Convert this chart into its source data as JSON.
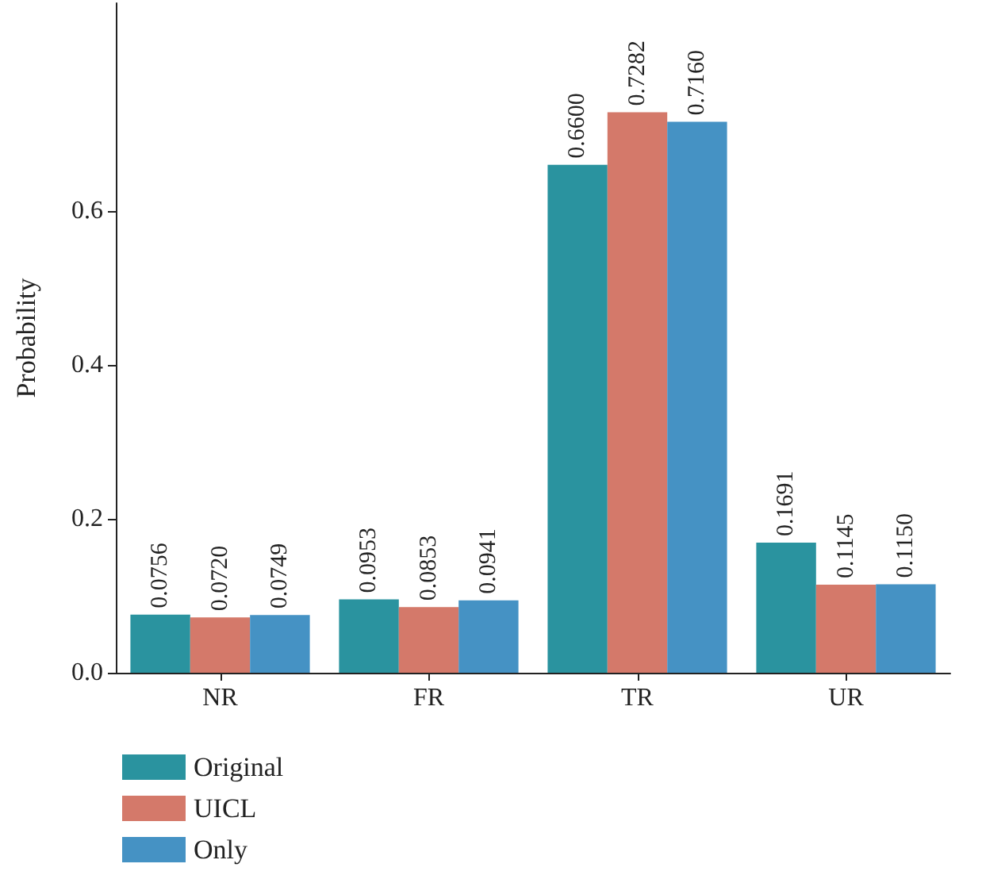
{
  "chart_data": {
    "type": "bar",
    "ylabel": "Probability",
    "categories": [
      "NR",
      "FR",
      "TR",
      "UR"
    ],
    "series": [
      {
        "name": "Original",
        "color": "#2a939f",
        "values": [
          0.0756,
          0.0953,
          0.66,
          0.1691
        ],
        "value_labels": [
          "0.0756",
          "0.0953",
          "0.6600",
          "0.1691"
        ]
      },
      {
        "name": "UICL",
        "color": "#d4796a",
        "values": [
          0.072,
          0.0853,
          0.7282,
          0.1145
        ],
        "value_labels": [
          "0.0720",
          "0.0853",
          "0.7282",
          "0.1145"
        ]
      },
      {
        "name": "Only",
        "color": "#4592c4",
        "values": [
          0.0749,
          0.0941,
          0.716,
          0.115
        ],
        "value_labels": [
          "0.0749",
          "0.0941",
          "0.7160",
          "0.1150"
        ]
      }
    ],
    "ylim": [
      0,
      0.87
    ],
    "yticks": [
      {
        "value": 0,
        "label": "0.0"
      },
      0.2,
      0.4,
      0.6
    ],
    "grid": false,
    "legend": "bottom left"
  }
}
